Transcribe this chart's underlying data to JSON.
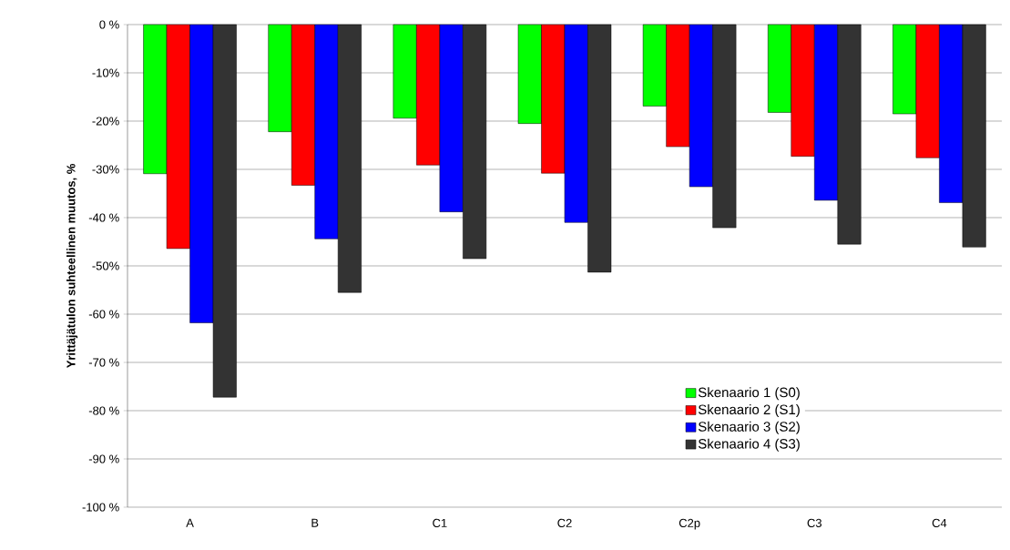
{
  "chart_data": {
    "type": "bar",
    "ylabel": "Yrittäjätulon suhteellinen muutos, %",
    "categories": [
      "A",
      "B",
      "C1",
      "C2",
      "C2p",
      "C3",
      "C4"
    ],
    "series": [
      {
        "name": "Skenaario 1 (S0)",
        "color": "#00ff00",
        "values": [
          -30.9,
          -22.2,
          -19.4,
          -20.5,
          -16.9,
          -18.2,
          -18.5
        ]
      },
      {
        "name": "Skenaario 2 (S1)",
        "color": "#ff0000",
        "values": [
          -46.4,
          -33.3,
          -29.1,
          -30.8,
          -25.3,
          -27.3,
          -27.6
        ]
      },
      {
        "name": "Skenaario 3 (S2)",
        "color": "#0000ff",
        "values": [
          -61.8,
          -44.4,
          -38.8,
          -41.0,
          -33.6,
          -36.4,
          -36.9
        ]
      },
      {
        "name": "Skenaario 4 (S3)",
        "color": "#333333",
        "values": [
          -77.2,
          -55.5,
          -48.5,
          -51.3,
          -42.1,
          -45.5,
          -46.1
        ]
      }
    ],
    "ylim": [
      -100,
      0
    ],
    "yticks": [
      {
        "value": 0,
        "label": "0 %"
      },
      {
        "value": -10,
        "label": "-10%"
      },
      {
        "value": -20,
        "label": "-20%"
      },
      {
        "value": -30,
        "label": "-30%"
      },
      {
        "value": -40,
        "label": "-40 %"
      },
      {
        "value": -50,
        "label": "-50%"
      },
      {
        "value": -60,
        "label": "-60 %"
      },
      {
        "value": -70,
        "label": "-70 %"
      },
      {
        "value": -80,
        "label": "-80 %"
      },
      {
        "value": -90,
        "label": "-90 %"
      },
      {
        "value": -100,
        "label": "-100 %"
      }
    ],
    "grid": "y",
    "legend": "right"
  }
}
